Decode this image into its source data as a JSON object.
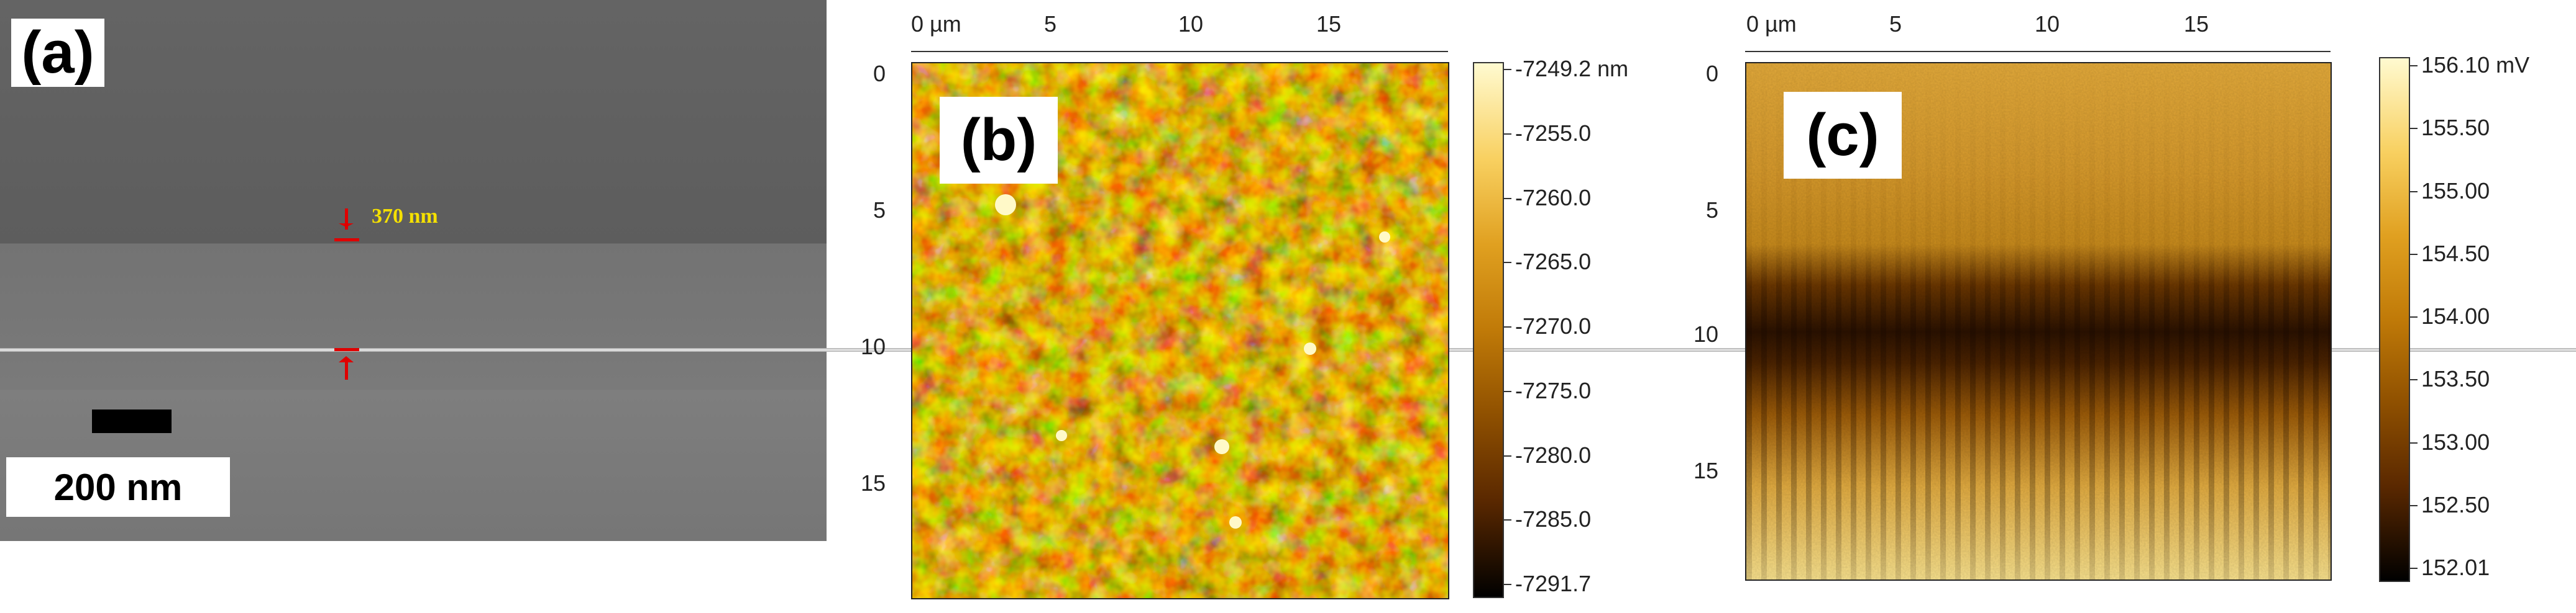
{
  "panels": {
    "a": {
      "label": "(a)",
      "measurement": "370 nm",
      "scale_bar": "200 nm"
    },
    "b": {
      "label": "(b)",
      "x_ticks": [
        "0 µm",
        "5",
        "10",
        "15"
      ],
      "y_ticks": [
        "0",
        "5",
        "10",
        "15"
      ],
      "colorbar": [
        "-7249.2 nm",
        "-7255.0",
        "-7260.0",
        "-7265.0",
        "-7270.0",
        "-7275.0",
        "-7280.0",
        "-7285.0",
        "-7291.7"
      ]
    },
    "c": {
      "label": "(c)",
      "x_ticks": [
        "0 µm",
        "5",
        "10",
        "15"
      ],
      "y_ticks": [
        "0",
        "5",
        "10",
        "15"
      ],
      "colorbar": [
        "156.10 mV",
        "155.50",
        "155.00",
        "154.50",
        "154.00",
        "153.50",
        "153.00",
        "152.50",
        "152.01"
      ]
    }
  },
  "colors": {
    "afm_dark": "#1a0c00",
    "afm_mid": "#b86a00",
    "afm_light": "#fff6b0",
    "measure_red": "#e00000",
    "measure_text": "#f5e000"
  }
}
